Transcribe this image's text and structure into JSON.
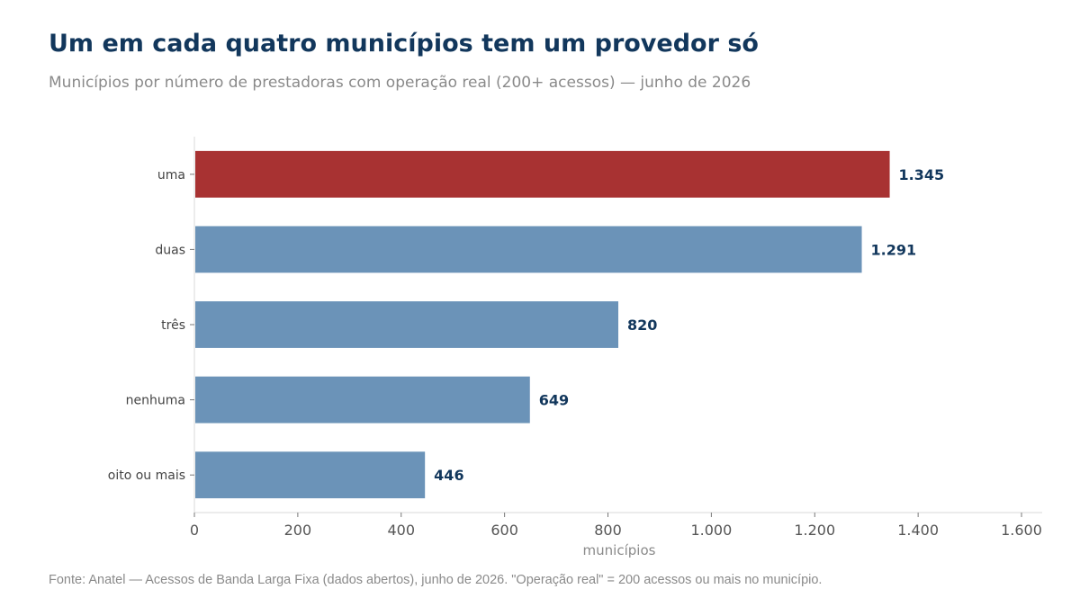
{
  "title": "Um em cada quatro municípios tem um provedor só",
  "subtitle": "Municípios por número de prestadoras com operação real (200+ acessos) — junho de 2026",
  "source": "Fonte: Anatel — Acessos de Banda Larga Fixa (dados abertos), junho de 2026. \"Operação real\" = 200 acessos ou mais no município.",
  "colors": {
    "highlight": "#a83232",
    "bar": "#6b93b8",
    "value_label": "#12375c",
    "axis": "#d9d9d9"
  },
  "chart_data": {
    "type": "bar",
    "orientation": "horizontal",
    "categories": [
      "uma",
      "duas",
      "três",
      "nenhuma",
      "oito ou mais"
    ],
    "values": [
      1345,
      1291,
      820,
      649,
      446
    ],
    "value_labels": [
      "1.345",
      "1.291",
      "820",
      "649",
      "446"
    ],
    "highlight_index": 0,
    "xlabel": "municípios",
    "ylabel": "",
    "xlim": [
      0,
      1640
    ],
    "xticks": [
      0,
      200,
      400,
      600,
      800,
      1000,
      1200,
      1400,
      1600
    ],
    "xtick_labels": [
      "0",
      "200",
      "400",
      "600",
      "800",
      "1.000",
      "1.200",
      "1.400",
      "1.600"
    ],
    "grid": false
  }
}
